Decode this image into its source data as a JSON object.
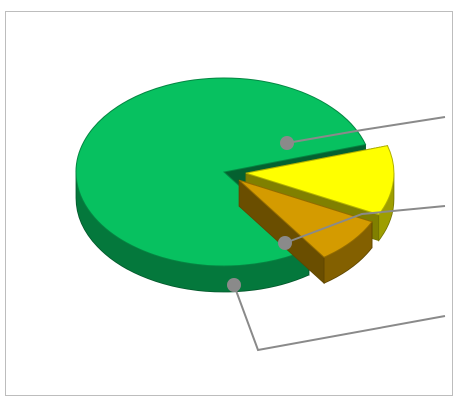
{
  "chart_data": {
    "type": "pie",
    "style": "3d-exploded",
    "legend": "none",
    "slices": [
      {
        "color": "#07c160",
        "value": 0.8
      },
      {
        "color": "#ffff00",
        "value": 0.12
      },
      {
        "color": "#d49b00",
        "value": 0.08
      }
    ]
  }
}
